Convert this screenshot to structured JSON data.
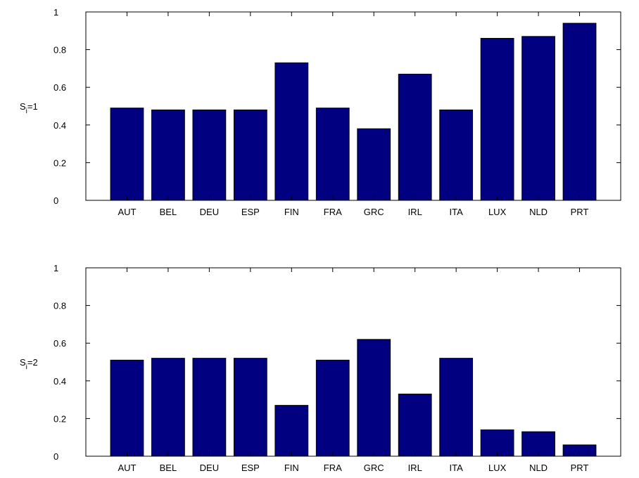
{
  "chart_data": [
    {
      "type": "bar",
      "ylabel_main": "S",
      "ylabel_sub": "i",
      "ylabel_suffix": "=1",
      "categories": [
        "AUT",
        "BEL",
        "DEU",
        "ESP",
        "FIN",
        "FRA",
        "GRC",
        "IRL",
        "ITA",
        "LUX",
        "NLD",
        "PRT"
      ],
      "values": [
        0.49,
        0.48,
        0.48,
        0.48,
        0.73,
        0.49,
        0.38,
        0.67,
        0.48,
        0.86,
        0.87,
        0.94
      ],
      "ylim": [
        0,
        1
      ],
      "yticks": [
        0,
        0.2,
        0.4,
        0.6,
        0.8,
        1
      ],
      "ytick_labels": [
        "0",
        "0.2",
        "0.4",
        "0.6",
        "0.8",
        "1"
      ],
      "bar_color": "#000080",
      "grid": false
    },
    {
      "type": "bar",
      "ylabel_main": "S",
      "ylabel_sub": "i",
      "ylabel_suffix": "=2",
      "categories": [
        "AUT",
        "BEL",
        "DEU",
        "ESP",
        "FIN",
        "FRA",
        "GRC",
        "IRL",
        "ITA",
        "LUX",
        "NLD",
        "PRT"
      ],
      "values": [
        0.51,
        0.52,
        0.52,
        0.52,
        0.27,
        0.51,
        0.62,
        0.33,
        0.52,
        0.14,
        0.13,
        0.06
      ],
      "ylim": [
        0,
        1
      ],
      "yticks": [
        0,
        0.2,
        0.4,
        0.6,
        0.8,
        1
      ],
      "ytick_labels": [
        "0",
        "0.2",
        "0.4",
        "0.6",
        "0.8",
        "1"
      ],
      "bar_color": "#000080",
      "grid": false
    }
  ]
}
